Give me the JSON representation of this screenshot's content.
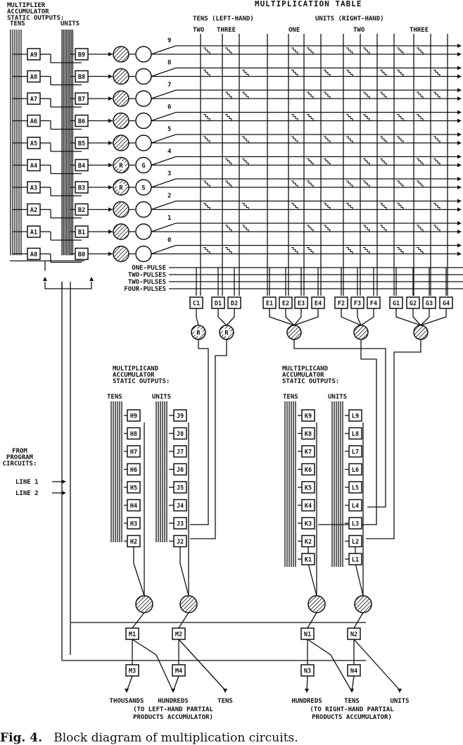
{
  "header": {
    "multiplier_title": "MULTIPLIER\nACCUMULATOR\nSTATIC OUTPUTS:",
    "tens": "TENS",
    "units": "UNITS",
    "table_title": "MULTIPLICATION TABLE",
    "tens_left_hand": "TENS (LEFT-HAND)",
    "units_right_hand": "UNITS    (RIGHT-HAND)",
    "two": "TWO",
    "three": "THREE",
    "one": "ONE"
  },
  "multiplier_tens": [
    "A9",
    "A8",
    "A7",
    "A6",
    "A5",
    "A4",
    "A3",
    "A2",
    "A1",
    "A0"
  ],
  "multiplier_units": [
    "B9",
    "B8",
    "B7",
    "B6",
    "B5",
    "B4",
    "B3",
    "B2",
    "B1",
    "B0"
  ],
  "digits": [
    "9",
    "8",
    "7",
    "6",
    "5",
    "4",
    "3",
    "2",
    "1",
    "0"
  ],
  "circle_marks": [
    {
      "row": 5,
      "left": "R",
      "right": "G"
    },
    {
      "row": 6,
      "left": "R",
      "right": "S"
    }
  ],
  "pulse_labels": [
    "ONE-PULSE",
    "TWO-PULSES",
    "TWO-PULSES",
    "FOUR-PULSES"
  ],
  "pulse_gates": [
    "C1",
    "D1",
    "D2",
    "E1",
    "E2",
    "E3",
    "E4",
    "F2",
    "F3",
    "F4",
    "G1",
    "G2",
    "G3",
    "G4"
  ],
  "pulse_mixer_marks": [
    "R",
    "R"
  ],
  "multiplicand_title": "MULTIPLICAND\nACCUMULATOR\nSTATIC OUTPUTS:",
  "multiplicand_left": {
    "tens": "TENS",
    "units": "UNITS",
    "tens_gates": [
      "H9",
      "H8",
      "H7",
      "H6",
      "H5",
      "H4",
      "H3",
      "H2"
    ],
    "units_gates": [
      "J9",
      "J8",
      "J7",
      "J6",
      "J5",
      "J4",
      "J3",
      "J2"
    ]
  },
  "multiplicand_right": {
    "tens": "TENS",
    "units": "UNITS",
    "tens_gates": [
      "K9",
      "K8",
      "K7",
      "K6",
      "K5",
      "K4",
      "K3",
      "K2",
      "K1"
    ],
    "units_gates": [
      "L9",
      "L8",
      "L7",
      "L6",
      "L5",
      "L4",
      "L3",
      "L2",
      "L1"
    ]
  },
  "program": {
    "title": "FROM\nPROGRAM\nCIRCUITS:",
    "line1": "LINE 1",
    "line2": "LINE 2"
  },
  "output_gates_top": [
    "M1",
    "M2",
    "N1",
    "N2"
  ],
  "output_gates_bottom": [
    "M3",
    "M4",
    "N3",
    "N4"
  ],
  "outputs_left": [
    "THOUSANDS",
    "HUNDREDS",
    "TENS"
  ],
  "outputs_left_note": "(TO LEFT-HAND PARTIAL\nPRODUCTS ACCUMULATOR)",
  "outputs_right": [
    "HUNDREDS",
    "TENS",
    "UNITS"
  ],
  "outputs_right_note": "(TO RIGHT-HAND PARTIAL\nPRODUCTS ACCUMULATOR)",
  "caption": {
    "fig": "Fig. 4.",
    "text": "Block diagram of multiplication circuits."
  }
}
